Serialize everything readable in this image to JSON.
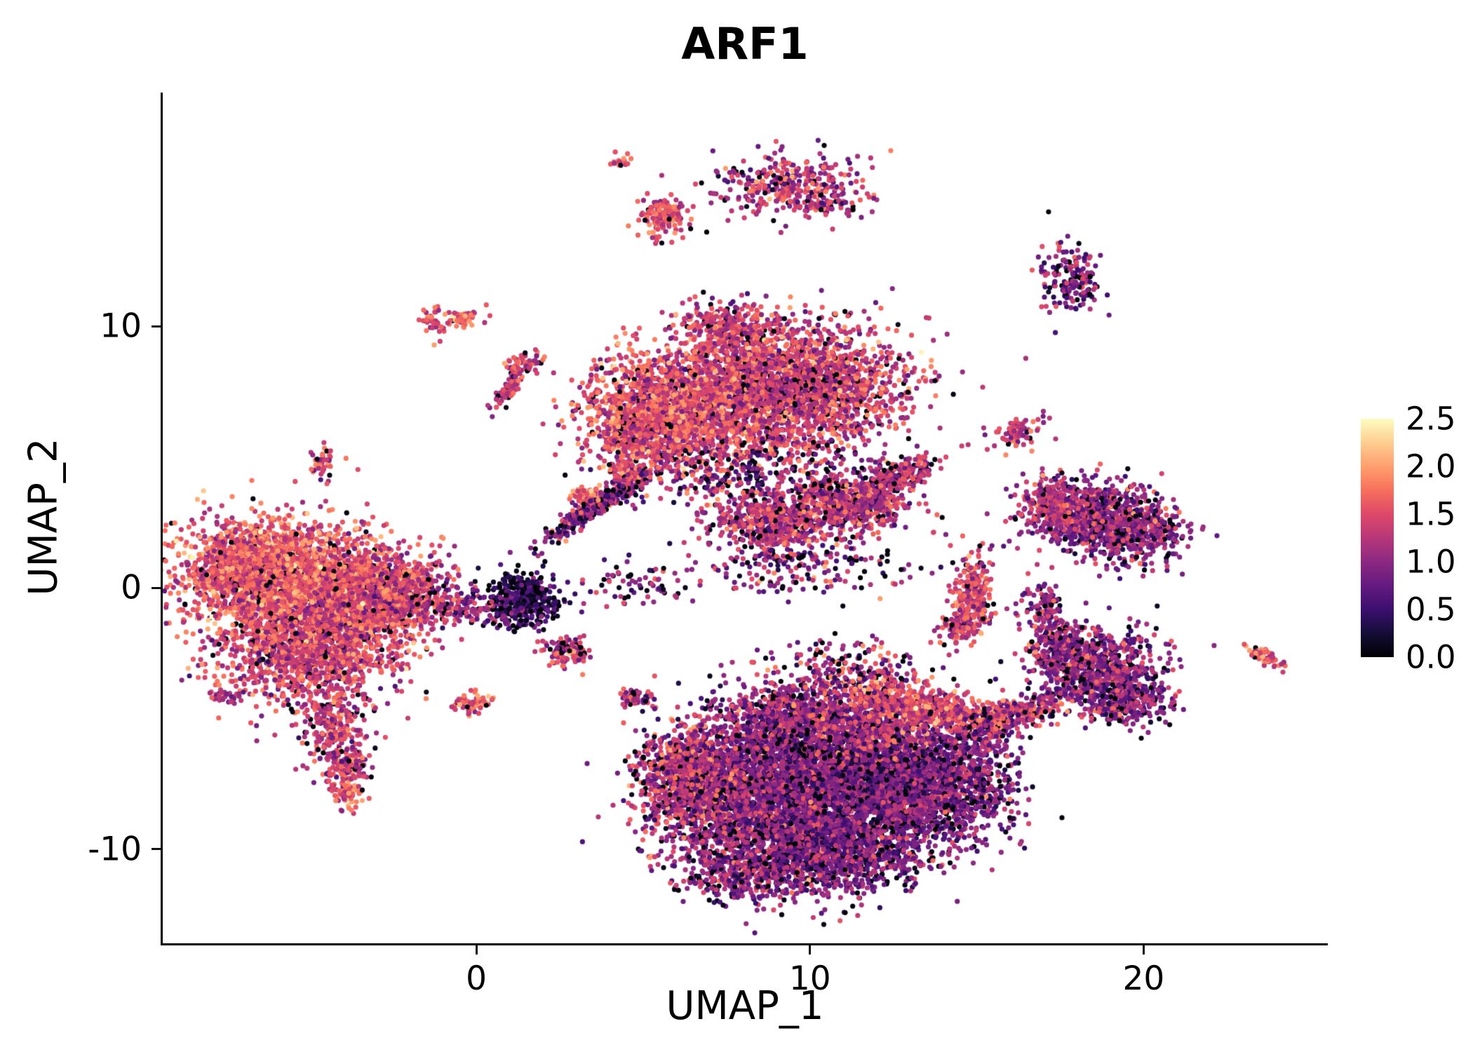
{
  "chart_data": {
    "type": "scatter",
    "title": "ARF1",
    "xlabel": "UMAP_1",
    "ylabel": "UMAP_2",
    "xlim": [
      -9.4,
      25.5
    ],
    "ylim": [
      -13.6,
      19.0
    ],
    "grid": false,
    "x_ticks": [
      {
        "value": 0,
        "label": "0"
      },
      {
        "value": 10,
        "label": "10"
      },
      {
        "value": 20,
        "label": "20"
      }
    ],
    "y_ticks": [
      {
        "value": -10,
        "label": "-10"
      },
      {
        "value": 0,
        "label": "0"
      },
      {
        "value": 10,
        "label": "10"
      }
    ],
    "legend": {
      "type": "colorbar",
      "position": "right",
      "range": [
        0,
        2.5
      ],
      "ticks": [
        {
          "value": 0.0,
          "label": "0.0"
        },
        {
          "value": 0.5,
          "label": "0.5"
        },
        {
          "value": 1.0,
          "label": "1.0"
        },
        {
          "value": 1.5,
          "label": "1.5"
        },
        {
          "value": 2.0,
          "label": "2.0"
        },
        {
          "value": 2.5,
          "label": "2.5"
        }
      ]
    },
    "colormap": {
      "name": "magma",
      "stops": [
        {
          "t": 0.0,
          "color": "#000004"
        },
        {
          "t": 0.1,
          "color": "#140e36"
        },
        {
          "t": 0.2,
          "color": "#3b0f70"
        },
        {
          "t": 0.3,
          "color": "#641a80"
        },
        {
          "t": 0.4,
          "color": "#8c2981"
        },
        {
          "t": 0.5,
          "color": "#b73779"
        },
        {
          "t": 0.6,
          "color": "#de4968"
        },
        {
          "t": 0.7,
          "color": "#f7705c"
        },
        {
          "t": 0.8,
          "color": "#fe9f6d"
        },
        {
          "t": 0.9,
          "color": "#fece91"
        },
        {
          "t": 1.0,
          "color": "#fcfdbf"
        }
      ]
    },
    "clusters": [
      {
        "x": -5.8,
        "y": 0.4,
        "sx": 1.55,
        "sy": 1.05,
        "n": 2100,
        "m": 1.62,
        "s": 0.33,
        "z": 0.04
      },
      {
        "x": -3.7,
        "y": -0.5,
        "sx": 1.25,
        "sy": 1.0,
        "n": 1500,
        "m": 1.5,
        "s": 0.33,
        "z": 0.05
      },
      {
        "x": -5.1,
        "y": -2.5,
        "sx": 1.3,
        "sy": 0.95,
        "n": 1100,
        "m": 1.38,
        "s": 0.32,
        "z": 0.06
      },
      {
        "x": -6.9,
        "y": 1.0,
        "sx": 0.7,
        "sy": 0.8,
        "n": 400,
        "m": 1.55,
        "s": 0.3,
        "z": 0.05
      },
      {
        "x": -2.1,
        "y": -0.2,
        "sx": 0.7,
        "sy": 0.6,
        "n": 350,
        "m": 1.35,
        "s": 0.3,
        "z": 0.08
      },
      {
        "x": -4.3,
        "y": -5.2,
        "sx": 0.5,
        "sy": 0.85,
        "n": 280,
        "m": 1.3,
        "s": 0.3,
        "z": 0.08
      },
      {
        "x": -3.9,
        "y": -6.9,
        "sx": 0.3,
        "sy": 0.6,
        "n": 130,
        "m": 1.35,
        "s": 0.3,
        "z": 0.06
      },
      {
        "x": -3.8,
        "y": -7.8,
        "sx": 0.22,
        "sy": 0.3,
        "n": 50,
        "m": 1.8,
        "s": 0.3,
        "z": 0.02
      },
      {
        "x": -7.6,
        "y": -4.1,
        "sx": 0.25,
        "sy": 0.18,
        "n": 35,
        "m": 1.2,
        "s": 0.35,
        "z": 0.1
      },
      {
        "x": -4.6,
        "y": 4.8,
        "sx": 0.18,
        "sy": 0.35,
        "n": 45,
        "m": 1.5,
        "s": 0.3,
        "z": 0.06
      },
      {
        "x": -1.3,
        "y": 10.1,
        "sx": 0.22,
        "sy": 0.3,
        "n": 35,
        "m": 1.5,
        "s": 0.3,
        "z": 0.08
      },
      {
        "x": -0.4,
        "y": 10.35,
        "sx": 0.3,
        "sy": 0.2,
        "n": 45,
        "m": 1.6,
        "s": 0.3,
        "z": 0.05
      },
      {
        "x": 1.45,
        "y": 8.6,
        "sx": 0.28,
        "sy": 0.2,
        "n": 55,
        "m": 1.45,
        "s": 0.3,
        "z": 0.06
      },
      {
        "x": 0.95,
        "y": 7.6,
        "sx": 0.5,
        "sy": 0.13,
        "rot": 60,
        "n": 65,
        "m": 1.3,
        "s": 0.3,
        "z": 0.1
      },
      {
        "x": 4.4,
        "y": 16.3,
        "sx": 0.15,
        "sy": 0.18,
        "n": 16,
        "m": 1.6,
        "s": 0.3,
        "z": 0.05
      },
      {
        "x": 5.6,
        "y": 14.2,
        "sx": 0.42,
        "sy": 0.4,
        "n": 130,
        "m": 1.55,
        "s": 0.3,
        "z": 0.08
      },
      {
        "x": 9.4,
        "y": 15.4,
        "sx": 1.1,
        "sy": 0.6,
        "n": 330,
        "m": 1.25,
        "s": 0.38,
        "z": 0.1
      },
      {
        "x": 10.6,
        "y": 14.7,
        "sx": 0.4,
        "sy": 0.3,
        "n": 60,
        "m": 1.2,
        "s": 0.35,
        "z": 0.1
      },
      {
        "x": 17.8,
        "y": 11.9,
        "sx": 0.45,
        "sy": 0.7,
        "n": 170,
        "m": 0.95,
        "s": 0.35,
        "z": 0.1
      },
      {
        "x": 6.0,
        "y": 6.8,
        "sx": 1.3,
        "sy": 1.05,
        "n": 1900,
        "m": 1.5,
        "s": 0.35,
        "z": 0.05
      },
      {
        "x": 9.6,
        "y": 7.7,
        "sx": 1.6,
        "sy": 1.15,
        "n": 2400,
        "m": 1.4,
        "s": 0.36,
        "z": 0.07
      },
      {
        "x": 7.6,
        "y": 10.0,
        "sx": 0.75,
        "sy": 0.5,
        "n": 300,
        "m": 1.35,
        "s": 0.33,
        "z": 0.07
      },
      {
        "x": 4.6,
        "y": 5.9,
        "sx": 0.5,
        "sy": 0.5,
        "n": 260,
        "m": 1.45,
        "s": 0.32,
        "z": 0.06
      },
      {
        "x": 8.2,
        "y": 4.4,
        "sx": 1.9,
        "sy": 0.8,
        "n": 420,
        "m": 0.95,
        "s": 0.45,
        "z": 0.22
      },
      {
        "x": 3.7,
        "y": 3.2,
        "sx": 1.15,
        "sy": 0.18,
        "rot": 42,
        "n": 330,
        "m": 0.95,
        "s": 0.4,
        "z": 0.15
      },
      {
        "x": 3.3,
        "y": 3.5,
        "sx": 0.25,
        "sy": 0.2,
        "n": 55,
        "m": 1.7,
        "s": 0.25,
        "z": 0.02
      },
      {
        "x": 4.5,
        "y": 4.4,
        "sx": 0.35,
        "sy": 0.3,
        "n": 80,
        "m": 1.5,
        "s": 0.3,
        "z": 0.05
      },
      {
        "x": 1.4,
        "y": -0.5,
        "sx": 0.55,
        "sy": 0.5,
        "n": 420,
        "m": 0.5,
        "s": 0.3,
        "z": 0.25
      },
      {
        "x": -0.4,
        "y": -0.8,
        "sx": 0.75,
        "sy": 0.3,
        "n": 110,
        "m": 1.0,
        "s": 0.4,
        "z": 0.15
      },
      {
        "x": 2.7,
        "y": -2.4,
        "sx": 0.35,
        "sy": 0.28,
        "n": 120,
        "m": 1.3,
        "s": 0.35,
        "z": 0.08
      },
      {
        "x": 4.7,
        "y": -4.2,
        "sx": 0.25,
        "sy": 0.2,
        "n": 60,
        "m": 1.1,
        "s": 0.35,
        "z": 0.1
      },
      {
        "x": -0.2,
        "y": -4.4,
        "sx": 0.3,
        "sy": 0.22,
        "n": 55,
        "m": 1.5,
        "s": 0.3,
        "z": 0.05
      },
      {
        "x": 4.9,
        "y": 0.1,
        "sx": 0.9,
        "sy": 0.5,
        "n": 70,
        "m": 1.0,
        "s": 0.4,
        "z": 0.2
      },
      {
        "x": 9.0,
        "y": 2.5,
        "sx": 0.8,
        "sy": 0.55,
        "n": 550,
        "m": 1.25,
        "s": 0.35,
        "z": 0.1
      },
      {
        "x": 11.2,
        "y": 3.2,
        "sx": 0.95,
        "sy": 0.55,
        "n": 550,
        "m": 1.3,
        "s": 0.35,
        "z": 0.08
      },
      {
        "x": 12.6,
        "y": 4.2,
        "sx": 0.65,
        "sy": 0.28,
        "rot": 28,
        "n": 240,
        "m": 1.25,
        "s": 0.33,
        "z": 0.08
      },
      {
        "x": 9.6,
        "y": 0.9,
        "sx": 1.5,
        "sy": 0.6,
        "n": 210,
        "m": 1.05,
        "s": 0.45,
        "z": 0.18
      },
      {
        "x": 16.1,
        "y": 5.9,
        "sx": 0.45,
        "sy": 0.25,
        "rot": 20,
        "n": 80,
        "m": 1.3,
        "s": 0.3,
        "z": 0.08
      },
      {
        "x": 14.9,
        "y": -0.2,
        "sx": 0.3,
        "sy": 0.75,
        "n": 260,
        "m": 1.45,
        "s": 0.33,
        "z": 0.06
      },
      {
        "x": 14.5,
        "y": -1.4,
        "sx": 0.3,
        "sy": 0.4,
        "n": 110,
        "m": 1.35,
        "s": 0.33,
        "z": 0.08
      },
      {
        "x": 18.2,
        "y": 2.9,
        "sx": 0.95,
        "sy": 0.65,
        "n": 700,
        "m": 1.1,
        "s": 0.35,
        "z": 0.1
      },
      {
        "x": 19.7,
        "y": 2.2,
        "sx": 0.8,
        "sy": 0.6,
        "n": 480,
        "m": 1.0,
        "s": 0.35,
        "z": 0.12
      },
      {
        "x": 17.2,
        "y": 3.4,
        "sx": 0.4,
        "sy": 0.35,
        "n": 140,
        "m": 1.4,
        "s": 0.3,
        "z": 0.05
      },
      {
        "x": 17.0,
        "y": -0.7,
        "sx": 0.3,
        "sy": 0.55,
        "n": 90,
        "m": 1.1,
        "s": 0.35,
        "z": 0.12
      },
      {
        "x": 18.6,
        "y": -3.0,
        "sx": 0.95,
        "sy": 0.7,
        "n": 700,
        "m": 1.0,
        "s": 0.35,
        "z": 0.12
      },
      {
        "x": 19.3,
        "y": -4.3,
        "sx": 0.7,
        "sy": 0.5,
        "n": 330,
        "m": 0.95,
        "s": 0.35,
        "z": 0.12
      },
      {
        "x": 17.4,
        "y": -2.1,
        "sx": 0.45,
        "sy": 0.5,
        "n": 200,
        "m": 1.1,
        "s": 0.35,
        "z": 0.1
      },
      {
        "x": 23.6,
        "y": -2.6,
        "sx": 0.38,
        "sy": 0.13,
        "rot": -35,
        "n": 65,
        "m": 1.65,
        "s": 0.3,
        "z": 0.05
      },
      {
        "x": 7.0,
        "y": -7.6,
        "sx": 1.05,
        "sy": 1.25,
        "n": 1500,
        "m": 1.15,
        "s": 0.4,
        "z": 0.1
      },
      {
        "x": 6.2,
        "y": -6.8,
        "sx": 0.5,
        "sy": 0.6,
        "n": 260,
        "m": 1.5,
        "s": 0.3,
        "z": 0.05
      },
      {
        "x": 10.3,
        "y": -7.4,
        "sx": 1.7,
        "sy": 1.5,
        "n": 3600,
        "m": 0.92,
        "s": 0.35,
        "z": 0.12
      },
      {
        "x": 10.0,
        "y": -10.2,
        "sx": 1.6,
        "sy": 0.85,
        "n": 1300,
        "m": 0.95,
        "s": 0.35,
        "z": 0.12
      },
      {
        "x": 13.4,
        "y": -7.7,
        "sx": 1.2,
        "sy": 1.1,
        "n": 1500,
        "m": 0.9,
        "s": 0.35,
        "z": 0.12
      },
      {
        "x": 9.4,
        "y": -4.9,
        "sx": 0.9,
        "sy": 0.55,
        "n": 520,
        "m": 1.1,
        "s": 0.38,
        "z": 0.1
      },
      {
        "x": 13.2,
        "y": -4.5,
        "sx": 1.25,
        "sy": 0.4,
        "rot": -12,
        "n": 560,
        "m": 1.55,
        "s": 0.3,
        "z": 0.04
      },
      {
        "x": 12.0,
        "y": -5.5,
        "sx": 0.85,
        "sy": 0.5,
        "n": 380,
        "m": 1.3,
        "s": 0.35,
        "z": 0.08
      },
      {
        "x": 11.3,
        "y": -3.2,
        "sx": 1.3,
        "sy": 0.6,
        "n": 240,
        "m": 1.2,
        "s": 0.45,
        "z": 0.15
      },
      {
        "x": 14.9,
        "y": -6.2,
        "sx": 0.6,
        "sy": 0.85,
        "n": 300,
        "m": 1.0,
        "s": 0.35,
        "z": 0.12
      },
      {
        "x": 16.2,
        "y": -4.8,
        "sx": 0.75,
        "sy": 0.3,
        "rot": 22,
        "n": 220,
        "m": 1.25,
        "s": 0.38,
        "z": 0.1
      },
      {
        "x": 7.8,
        "y": -11.0,
        "sx": 0.9,
        "sy": 0.45,
        "n": 220,
        "m": 1.0,
        "s": 0.38,
        "z": 0.12
      }
    ]
  }
}
